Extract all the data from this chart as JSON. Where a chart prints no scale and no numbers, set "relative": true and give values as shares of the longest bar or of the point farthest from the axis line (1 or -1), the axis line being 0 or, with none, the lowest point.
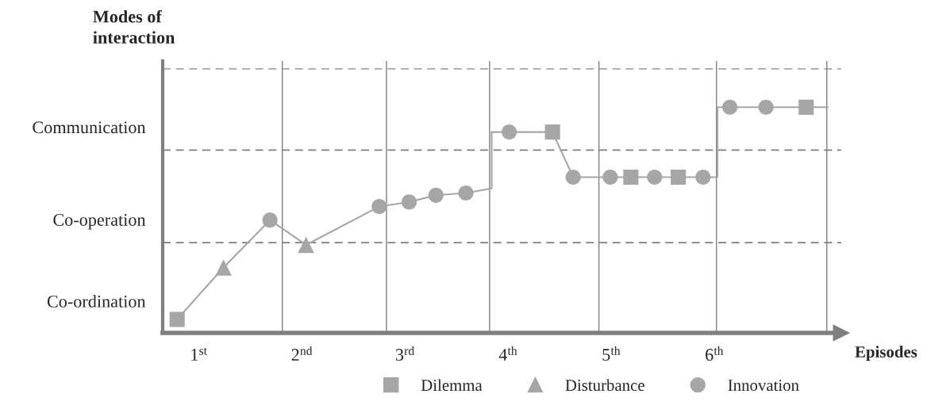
{
  "chart_data": {
    "type": "line",
    "relative": true,
    "ylabel": "Modes of interaction",
    "xlabel": "Episodes",
    "annotations": [
      "Co-ordination",
      "Co-operation",
      "Communication"
    ],
    "xlim": [
      0.65,
      7.23
    ],
    "xticks": [
      {
        "value": 1,
        "label": "1$^{st}$"
      },
      {
        "value": 2,
        "label": "2$^{nd}$"
      },
      {
        "value": 3,
        "label": "3$^{rd}$"
      },
      {
        "value": 4,
        "label": "4$^{th}$"
      },
      {
        "value": 5,
        "label": "5$^{th}$"
      },
      {
        "value": 6,
        "label": "6$^{th}$"
      }
    ],
    "series": [
      {
        "color": "#a6a6a6",
        "marker": "none",
        "x": [
          0.79,
          1.24,
          1.69,
          2.04,
          2.75,
          3.04,
          3.3,
          3.59,
          3.84,
          3.84,
          4.01,
          4.43,
          4.63,
          4.99,
          5.19,
          5.42,
          5.65,
          5.89,
          6.03,
          6.03,
          6.15,
          6.5,
          6.89,
          7.1
        ],
        "values": [
          0.06,
          0.29,
          0.5,
          0.39,
          0.56,
          0.58,
          0.61,
          0.62,
          0.64,
          0.89,
          0.89,
          0.89,
          0.69,
          0.69,
          0.69,
          0.69,
          0.69,
          0.69,
          0.69,
          1.0,
          1.0,
          1.0,
          1.0,
          1.0
        ]
      },
      {
        "type": "scatter",
        "name": "Dilemma",
        "color": "#a6a6a6",
        "marker": "square",
        "x": [
          0.79,
          4.43,
          5.19,
          5.65,
          6.89
        ],
        "values": [
          0.06,
          0.89,
          0.69,
          0.69,
          1.0
        ]
      },
      {
        "type": "scatter",
        "name": "Disturbance",
        "color": "#a6a6a6",
        "marker": "triangle",
        "x": [
          1.24,
          2.04
        ],
        "values": [
          0.29,
          0.39
        ]
      },
      {
        "type": "scatter",
        "name": "Innovation",
        "color": "#a6a6a6",
        "marker": "circle",
        "x": [
          1.69,
          2.75,
          3.04,
          3.3,
          3.59,
          4.01,
          4.63,
          4.99,
          5.42,
          5.89,
          6.15,
          6.5
        ],
        "values": [
          0.5,
          0.56,
          0.58,
          0.61,
          0.62,
          0.89,
          0.69,
          0.69,
          0.69,
          0.69,
          1.0,
          1.0
        ]
      }
    ],
    "ref_lines": [
      {
        "axis": "y",
        "value": 0.4,
        "color": "#7f7f7f",
        "line_style": "dashed"
      },
      {
        "axis": "y",
        "value": 0.81,
        "color": "#7f7f7f",
        "line_style": "dashed"
      },
      {
        "axis": "y",
        "value": 1.17,
        "color": "#a6a6a6",
        "line_style": "dashed"
      },
      {
        "axis": "x",
        "value": 1.81,
        "color": "#7f7f7f",
        "line_style": "solid"
      },
      {
        "axis": "x",
        "value": 2.82,
        "color": "#7f7f7f",
        "line_style": "solid"
      },
      {
        "axis": "x",
        "value": 3.82,
        "color": "#7f7f7f",
        "line_style": "solid"
      },
      {
        "axis": "x",
        "value": 4.88,
        "color": "#7f7f7f",
        "line_style": "solid"
      },
      {
        "axis": "x",
        "value": 6.02,
        "color": "#7f7f7f",
        "line_style": "solid"
      },
      {
        "axis": "x",
        "value": 7.09,
        "color": "#7f7f7f",
        "line_style": "solid"
      }
    ],
    "legend": "bottom right",
    "grid": false
  }
}
